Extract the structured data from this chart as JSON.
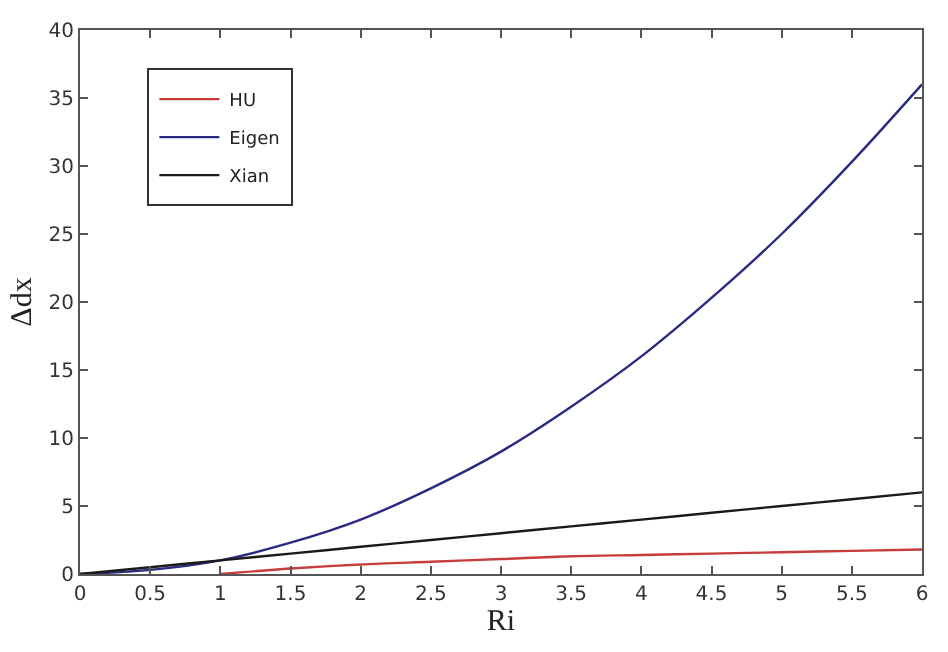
{
  "chart_data": {
    "type": "line",
    "xlabel": "Ri",
    "ylabel": "Δdx",
    "xlim": [
      0,
      6
    ],
    "xticks": [
      0,
      0.5,
      1,
      1.5,
      2,
      2.5,
      3,
      3.5,
      4,
      4.5,
      5,
      5.5,
      6
    ],
    "ylim": [
      0,
      40
    ],
    "yticks": [
      0,
      5,
      10,
      15,
      20,
      25,
      30,
      35,
      40
    ],
    "legend": "top left",
    "marker": "none",
    "line_style": "solid",
    "series": [
      {
        "name": "HU",
        "color": "#c83c3c",
        "x": [
          1,
          1.5,
          2,
          2.5,
          3,
          3.5,
          4,
          4.5,
          5,
          5.5,
          6
        ],
        "values": [
          0,
          0.4,
          0.7,
          0.9,
          1.1,
          1.3,
          1.4,
          1.5,
          1.6,
          1.7,
          1.8
        ]
      },
      {
        "name": "Eigen",
        "color": "#2a2a80",
        "x": [
          0,
          0.5,
          1,
          1.5,
          2,
          2.5,
          3,
          3.5,
          4,
          4.5,
          5,
          5.5,
          6
        ],
        "values": [
          0,
          0.3,
          1,
          2.3,
          4,
          6.3,
          9,
          12.3,
          16,
          20.3,
          25,
          30.3,
          36
        ]
      },
      {
        "name": "Xian",
        "color": "#1a1a1a",
        "x": [
          0,
          0.5,
          1,
          1.5,
          2,
          2.5,
          3,
          3.5,
          4,
          4.5,
          5,
          5.5,
          6
        ],
        "values": [
          0,
          0.5,
          1,
          1.5,
          2,
          2.5,
          3,
          3.5,
          4,
          4.5,
          5,
          5.5,
          6
        ]
      }
    ]
  }
}
